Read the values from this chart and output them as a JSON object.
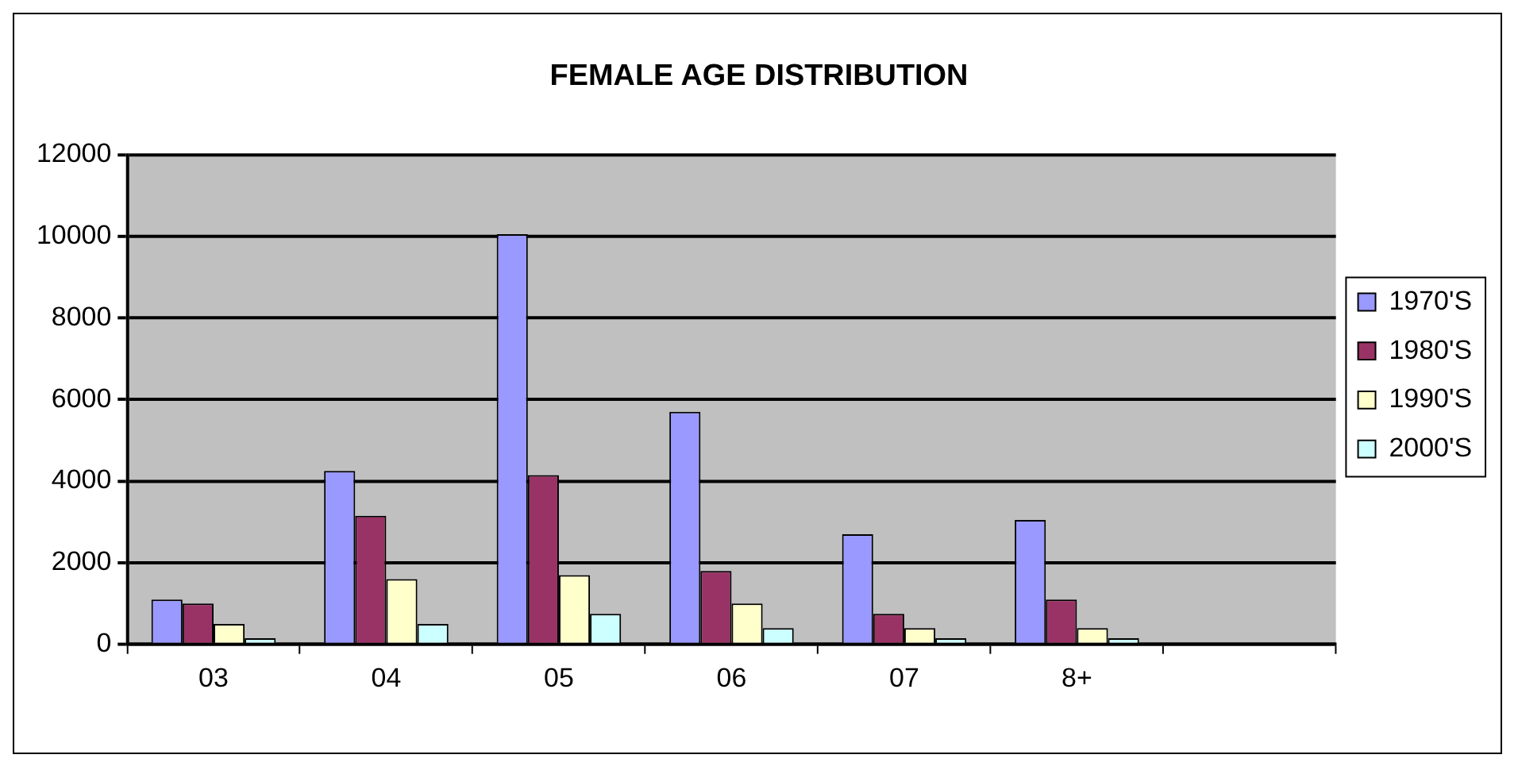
{
  "chart_data": {
    "type": "bar",
    "title": "FEMALE AGE DISTRIBUTION",
    "categories": [
      "03",
      "04",
      "05",
      "06",
      "07",
      "8+",
      null
    ],
    "series": [
      {
        "name": "1970'S",
        "color": "#9999ff",
        "values": [
          1100,
          4250,
          10050,
          5700,
          2700,
          3050,
          null
        ]
      },
      {
        "name": "1980'S",
        "color": "#993366",
        "values": [
          1000,
          3150,
          4150,
          1800,
          750,
          1100,
          null
        ]
      },
      {
        "name": "1990'S",
        "color": "#ffffcc",
        "values": [
          500,
          1600,
          1700,
          1000,
          400,
          400,
          null
        ]
      },
      {
        "name": "2000'S",
        "color": "#ccffff",
        "values": [
          150,
          500,
          750,
          400,
          150,
          150,
          null
        ]
      }
    ],
    "ylim": [
      0,
      12000
    ],
    "yticks": [
      0,
      2000,
      4000,
      6000,
      8000,
      10000,
      12000
    ],
    "grid": "y",
    "legend": "right"
  }
}
